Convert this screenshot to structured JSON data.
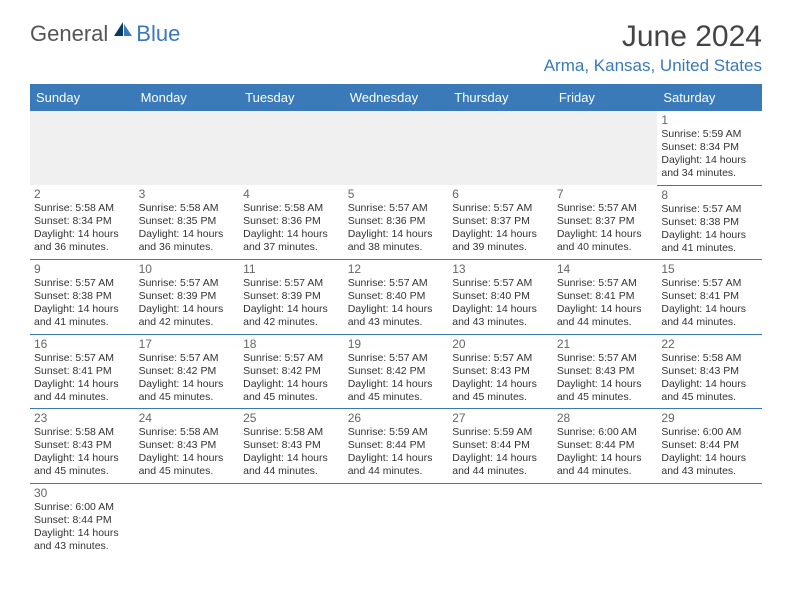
{
  "logo": {
    "general": "General",
    "blue": "Blue"
  },
  "title": "June 2024",
  "location": "Arma, Kansas, United States",
  "colors": {
    "header_bg": "#3a7ab8",
    "header_text": "#ffffff",
    "accent": "#3a7ab8",
    "text": "#333333",
    "muted": "#666666",
    "empty_bg": "#f0f0f0"
  },
  "day_names": [
    "Sunday",
    "Monday",
    "Tuesday",
    "Wednesday",
    "Thursday",
    "Friday",
    "Saturday"
  ],
  "weeks": [
    [
      null,
      null,
      null,
      null,
      null,
      null,
      {
        "n": "1",
        "sr": "Sunrise: 5:59 AM",
        "ss": "Sunset: 8:34 PM",
        "d1": "Daylight: 14 hours",
        "d2": "and 34 minutes."
      }
    ],
    [
      {
        "n": "2",
        "sr": "Sunrise: 5:58 AM",
        "ss": "Sunset: 8:34 PM",
        "d1": "Daylight: 14 hours",
        "d2": "and 36 minutes."
      },
      {
        "n": "3",
        "sr": "Sunrise: 5:58 AM",
        "ss": "Sunset: 8:35 PM",
        "d1": "Daylight: 14 hours",
        "d2": "and 36 minutes."
      },
      {
        "n": "4",
        "sr": "Sunrise: 5:58 AM",
        "ss": "Sunset: 8:36 PM",
        "d1": "Daylight: 14 hours",
        "d2": "and 37 minutes."
      },
      {
        "n": "5",
        "sr": "Sunrise: 5:57 AM",
        "ss": "Sunset: 8:36 PM",
        "d1": "Daylight: 14 hours",
        "d2": "and 38 minutes."
      },
      {
        "n": "6",
        "sr": "Sunrise: 5:57 AM",
        "ss": "Sunset: 8:37 PM",
        "d1": "Daylight: 14 hours",
        "d2": "and 39 minutes."
      },
      {
        "n": "7",
        "sr": "Sunrise: 5:57 AM",
        "ss": "Sunset: 8:37 PM",
        "d1": "Daylight: 14 hours",
        "d2": "and 40 minutes."
      },
      {
        "n": "8",
        "sr": "Sunrise: 5:57 AM",
        "ss": "Sunset: 8:38 PM",
        "d1": "Daylight: 14 hours",
        "d2": "and 41 minutes."
      }
    ],
    [
      {
        "n": "9",
        "sr": "Sunrise: 5:57 AM",
        "ss": "Sunset: 8:38 PM",
        "d1": "Daylight: 14 hours",
        "d2": "and 41 minutes."
      },
      {
        "n": "10",
        "sr": "Sunrise: 5:57 AM",
        "ss": "Sunset: 8:39 PM",
        "d1": "Daylight: 14 hours",
        "d2": "and 42 minutes."
      },
      {
        "n": "11",
        "sr": "Sunrise: 5:57 AM",
        "ss": "Sunset: 8:39 PM",
        "d1": "Daylight: 14 hours",
        "d2": "and 42 minutes."
      },
      {
        "n": "12",
        "sr": "Sunrise: 5:57 AM",
        "ss": "Sunset: 8:40 PM",
        "d1": "Daylight: 14 hours",
        "d2": "and 43 minutes."
      },
      {
        "n": "13",
        "sr": "Sunrise: 5:57 AM",
        "ss": "Sunset: 8:40 PM",
        "d1": "Daylight: 14 hours",
        "d2": "and 43 minutes."
      },
      {
        "n": "14",
        "sr": "Sunrise: 5:57 AM",
        "ss": "Sunset: 8:41 PM",
        "d1": "Daylight: 14 hours",
        "d2": "and 44 minutes."
      },
      {
        "n": "15",
        "sr": "Sunrise: 5:57 AM",
        "ss": "Sunset: 8:41 PM",
        "d1": "Daylight: 14 hours",
        "d2": "and 44 minutes."
      }
    ],
    [
      {
        "n": "16",
        "sr": "Sunrise: 5:57 AM",
        "ss": "Sunset: 8:41 PM",
        "d1": "Daylight: 14 hours",
        "d2": "and 44 minutes."
      },
      {
        "n": "17",
        "sr": "Sunrise: 5:57 AM",
        "ss": "Sunset: 8:42 PM",
        "d1": "Daylight: 14 hours",
        "d2": "and 45 minutes."
      },
      {
        "n": "18",
        "sr": "Sunrise: 5:57 AM",
        "ss": "Sunset: 8:42 PM",
        "d1": "Daylight: 14 hours",
        "d2": "and 45 minutes."
      },
      {
        "n": "19",
        "sr": "Sunrise: 5:57 AM",
        "ss": "Sunset: 8:42 PM",
        "d1": "Daylight: 14 hours",
        "d2": "and 45 minutes."
      },
      {
        "n": "20",
        "sr": "Sunrise: 5:57 AM",
        "ss": "Sunset: 8:43 PM",
        "d1": "Daylight: 14 hours",
        "d2": "and 45 minutes."
      },
      {
        "n": "21",
        "sr": "Sunrise: 5:57 AM",
        "ss": "Sunset: 8:43 PM",
        "d1": "Daylight: 14 hours",
        "d2": "and 45 minutes."
      },
      {
        "n": "22",
        "sr": "Sunrise: 5:58 AM",
        "ss": "Sunset: 8:43 PM",
        "d1": "Daylight: 14 hours",
        "d2": "and 45 minutes."
      }
    ],
    [
      {
        "n": "23",
        "sr": "Sunrise: 5:58 AM",
        "ss": "Sunset: 8:43 PM",
        "d1": "Daylight: 14 hours",
        "d2": "and 45 minutes."
      },
      {
        "n": "24",
        "sr": "Sunrise: 5:58 AM",
        "ss": "Sunset: 8:43 PM",
        "d1": "Daylight: 14 hours",
        "d2": "and 45 minutes."
      },
      {
        "n": "25",
        "sr": "Sunrise: 5:58 AM",
        "ss": "Sunset: 8:43 PM",
        "d1": "Daylight: 14 hours",
        "d2": "and 44 minutes."
      },
      {
        "n": "26",
        "sr": "Sunrise: 5:59 AM",
        "ss": "Sunset: 8:44 PM",
        "d1": "Daylight: 14 hours",
        "d2": "and 44 minutes."
      },
      {
        "n": "27",
        "sr": "Sunrise: 5:59 AM",
        "ss": "Sunset: 8:44 PM",
        "d1": "Daylight: 14 hours",
        "d2": "and 44 minutes."
      },
      {
        "n": "28",
        "sr": "Sunrise: 6:00 AM",
        "ss": "Sunset: 8:44 PM",
        "d1": "Daylight: 14 hours",
        "d2": "and 44 minutes."
      },
      {
        "n": "29",
        "sr": "Sunrise: 6:00 AM",
        "ss": "Sunset: 8:44 PM",
        "d1": "Daylight: 14 hours",
        "d2": "and 43 minutes."
      }
    ],
    [
      {
        "n": "30",
        "sr": "Sunrise: 6:00 AM",
        "ss": "Sunset: 8:44 PM",
        "d1": "Daylight: 14 hours",
        "d2": "and 43 minutes."
      },
      null,
      null,
      null,
      null,
      null,
      null
    ]
  ]
}
